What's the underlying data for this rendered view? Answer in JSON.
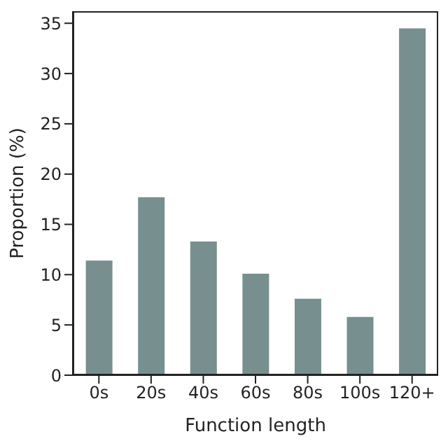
{
  "chart_data": {
    "type": "bar",
    "xlabel": "Function length",
    "ylabel": "Proportion (%)",
    "categories": [
      "0s",
      "20s",
      "40s",
      "60s",
      "80s",
      "100s",
      "120+"
    ],
    "values": [
      11.4,
      17.7,
      13.3,
      10.1,
      7.6,
      5.8,
      34.5
    ],
    "color": "#788f8f",
    "ylim": [
      0,
      36.2
    ],
    "yticks": [
      0,
      5,
      10,
      15,
      20,
      25,
      30,
      35
    ],
    "grid": false
  }
}
